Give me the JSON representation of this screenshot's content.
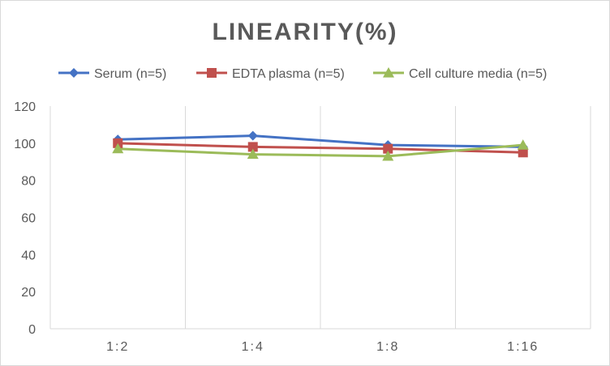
{
  "chart_data": {
    "type": "line",
    "title": "LINEARITY(%)",
    "xlabel": "",
    "ylabel": "",
    "categories": [
      "1:2",
      "1:4",
      "1:8",
      "1:16"
    ],
    "ylim": [
      0,
      120
    ],
    "yticks": [
      0,
      20,
      40,
      60,
      80,
      100,
      120
    ],
    "grid": "vertical",
    "legend_position": "top",
    "series": [
      {
        "name": "Serum (n=5)",
        "values": [
          102,
          104,
          99,
          98
        ],
        "color": "#4472C4",
        "marker": "diamond"
      },
      {
        "name": "EDTA plasma (n=5)",
        "values": [
          100,
          98,
          97,
          95
        ],
        "color": "#C0504D",
        "marker": "square"
      },
      {
        "name": "Cell culture media (n=5)",
        "values": [
          97,
          94,
          93,
          99
        ],
        "color": "#9BBB59",
        "marker": "triangle"
      }
    ]
  }
}
